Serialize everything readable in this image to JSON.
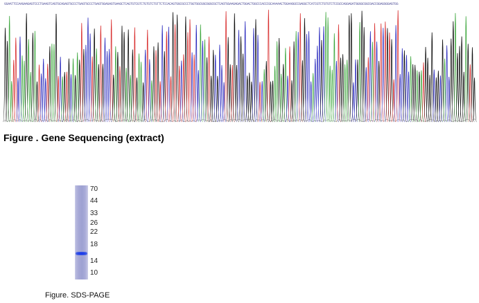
{
  "sequencing": {
    "bases_text": "GGAATTCCAAGAAGAGTCCCTGAAGTCAGTGCAGAGTGCCCTGAGTGCCCTGAGTGGAGAGTGAAGCTCAGTGTCGTCTGTGTCTGTTCTCCACAGTGGCGCCCTGGTGGCGGCGGGCGCTCAGTGGAAGAGACTGGACTGGCCCACCCGCAAAAACTGGAAGGCCGAGGCTCATCGTCTGTGTCTCCGCCAGGAGATGGGGCGGCGACCGGAGGGGAGTGG",
    "caption": "Figure . Gene Sequencing (extract)",
    "colors": {
      "A": "#3fa83f",
      "C": "#2f2fbf",
      "G": "#111111",
      "T": "#d93030"
    }
  },
  "sds_page": {
    "markers": [
      "70",
      "44",
      "33",
      "26",
      "22",
      "18",
      "14",
      "10"
    ],
    "band_marker_position": "between 18 and 14 kDa",
    "band_color": "#1f3ae6",
    "caption": "Figure. SDS-PAGE"
  }
}
